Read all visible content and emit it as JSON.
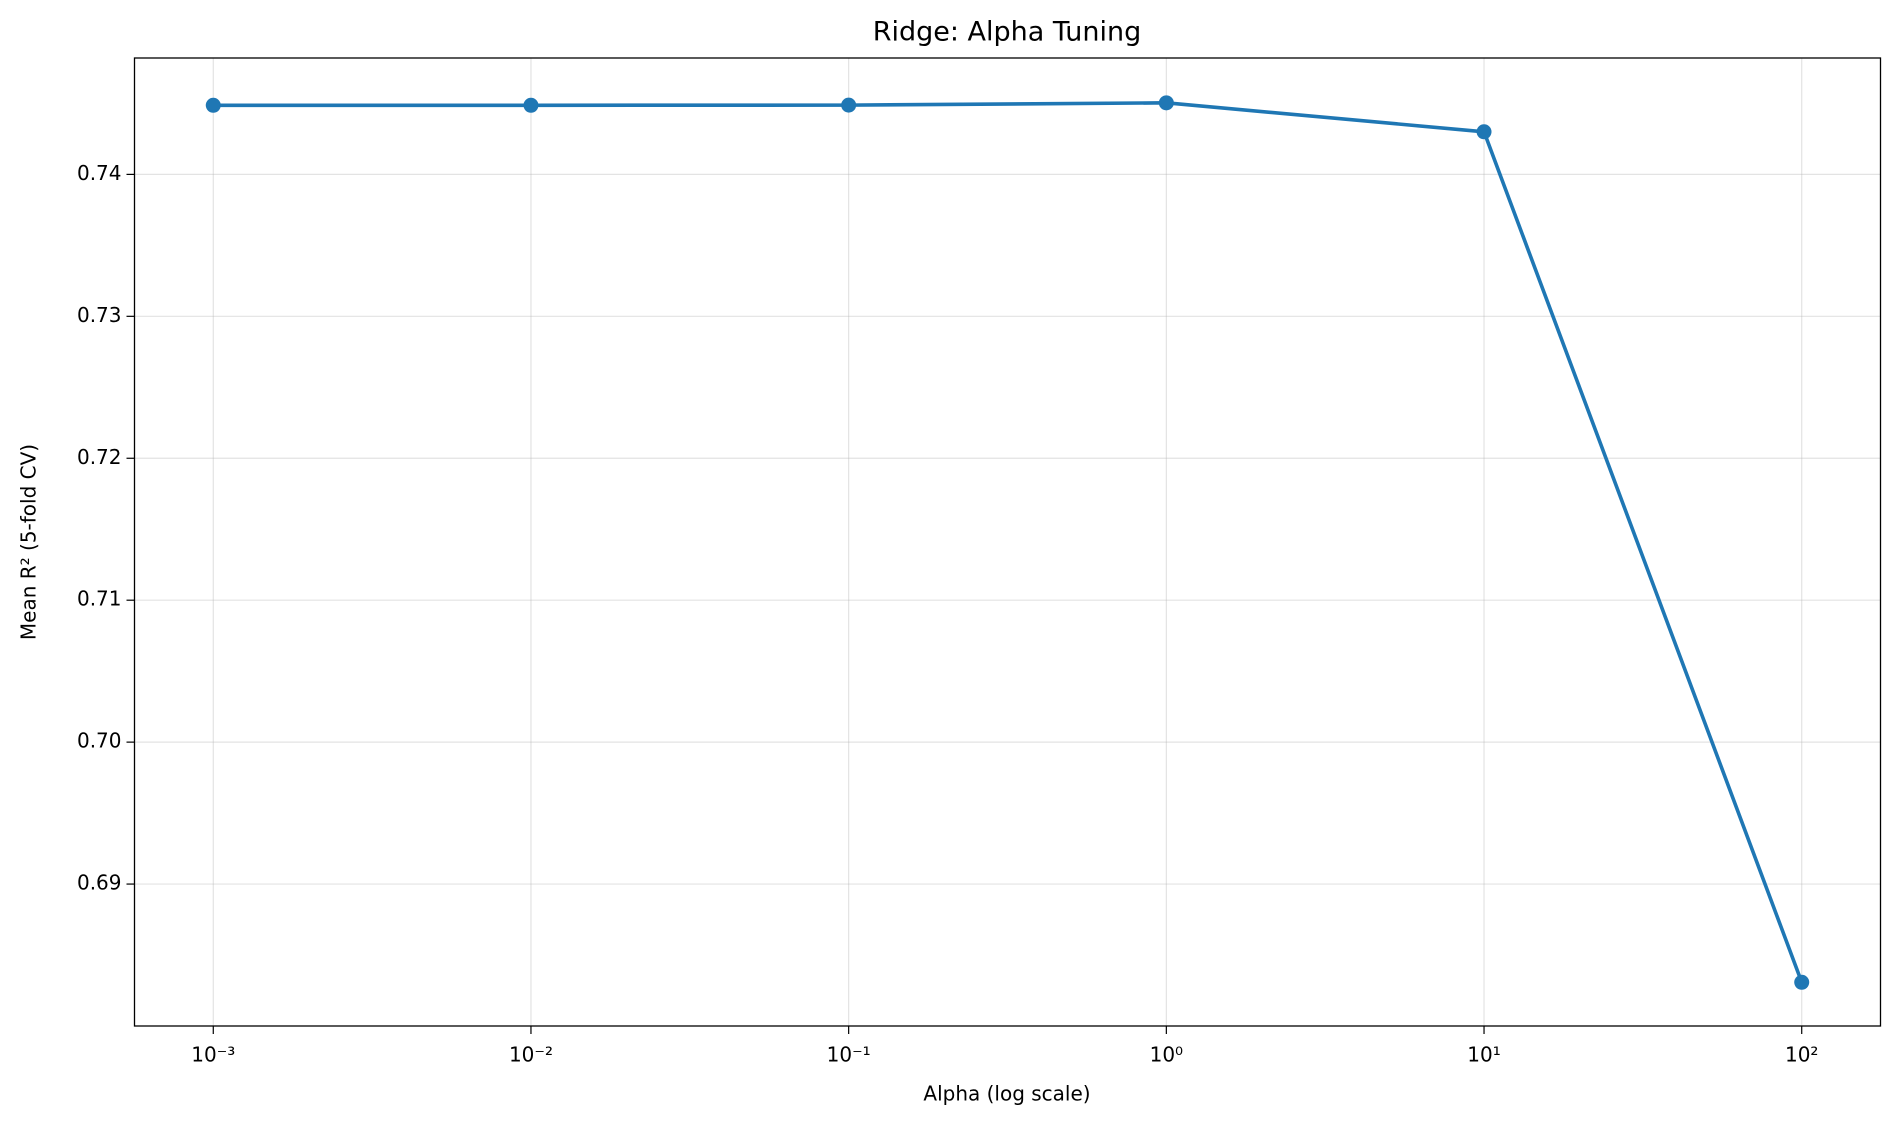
{
  "chart_data": {
    "type": "line",
    "title": "Ridge: Alpha Tuning",
    "x_label": "Alpha (log scale)",
    "y_label": "Mean R² (5-fold CV)",
    "x": [
      0.001,
      0.01,
      0.1,
      1,
      10,
      100
    ],
    "series": [
      {
        "name": "Ridge",
        "color": "#1f77b4",
        "values": [
          0.74487,
          0.74487,
          0.74488,
          0.74504,
          0.743,
          0.68308
        ]
      }
    ],
    "xscale": "log",
    "xlim": [
      0.000565,
      177
    ],
    "xticks": [
      {
        "value": 0.001,
        "label": "10⁻³"
      },
      {
        "value": 0.01,
        "label": "10⁻²"
      },
      {
        "value": 0.1,
        "label": "10⁻¹"
      },
      {
        "value": 1,
        "label": "10⁰"
      },
      {
        "value": 10,
        "label": "10¹"
      },
      {
        "value": 100,
        "label": "10²"
      }
    ],
    "ylim": [
      0.68,
      0.7482
    ],
    "yticks": [
      {
        "value": 0.69,
        "label": "0.69"
      },
      {
        "value": 0.7,
        "label": "0.70"
      },
      {
        "value": 0.71,
        "label": "0.71"
      },
      {
        "value": 0.72,
        "label": "0.72"
      },
      {
        "value": 0.73,
        "label": "0.73"
      },
      {
        "value": 0.74,
        "label": "0.74"
      }
    ],
    "grid": true
  }
}
